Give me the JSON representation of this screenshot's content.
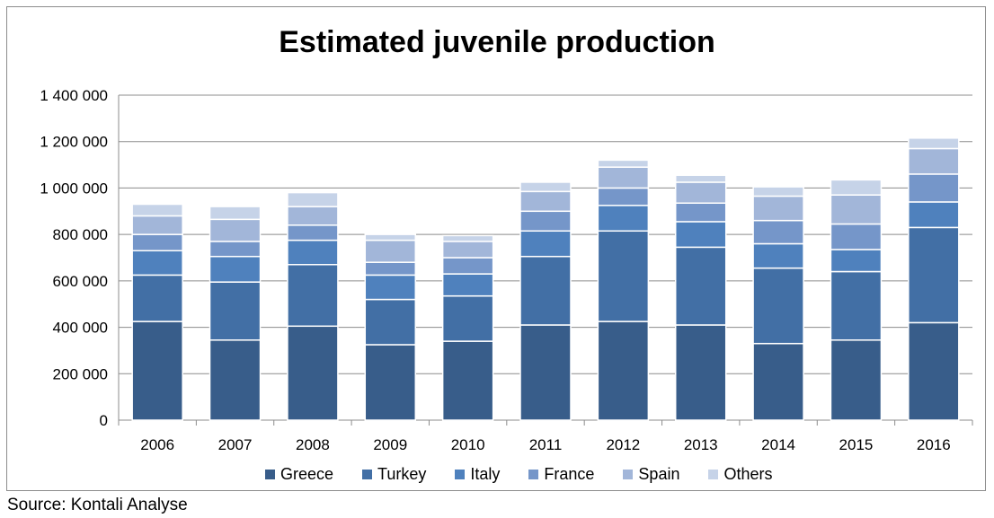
{
  "chart_data": {
    "type": "bar",
    "stacked": true,
    "title": "Estimated juvenile production",
    "categories": [
      "2006",
      "2007",
      "2008",
      "2009",
      "2010",
      "2011",
      "2012",
      "2013",
      "2014",
      "2015",
      "2016"
    ],
    "series": [
      {
        "name": "Greece",
        "color": "#385d8a",
        "values": [
          425000,
          345000,
          405000,
          325000,
          340000,
          410000,
          425000,
          410000,
          330000,
          345000,
          420000
        ]
      },
      {
        "name": "Turkey",
        "color": "#426fa5",
        "values": [
          200000,
          250000,
          265000,
          195000,
          195000,
          295000,
          390000,
          335000,
          325000,
          295000,
          410000
        ]
      },
      {
        "name": "Italy",
        "color": "#4f81bd",
        "values": [
          105000,
          110000,
          105000,
          105000,
          95000,
          110000,
          110000,
          110000,
          105000,
          95000,
          110000
        ]
      },
      {
        "name": "France",
        "color": "#7596c9",
        "values": [
          70000,
          65000,
          65000,
          55000,
          70000,
          85000,
          75000,
          80000,
          100000,
          110000,
          120000
        ]
      },
      {
        "name": "Spain",
        "color": "#a2b6d9",
        "values": [
          80000,
          95000,
          80000,
          95000,
          70000,
          85000,
          90000,
          90000,
          105000,
          125000,
          110000
        ]
      },
      {
        "name": "Others",
        "color": "#c6d3e8",
        "values": [
          50000,
          55000,
          60000,
          25000,
          25000,
          40000,
          30000,
          30000,
          40000,
          65000,
          45000
        ]
      }
    ],
    "ylim": [
      0,
      1400000
    ],
    "yticks": [
      "0",
      "200 000",
      "400 000",
      "600 000",
      "800 000",
      "1 000 000",
      "1 200 000",
      "1 400 000"
    ],
    "grid": true,
    "legend": "bottom"
  },
  "source": "Source: Kontali Analyse"
}
